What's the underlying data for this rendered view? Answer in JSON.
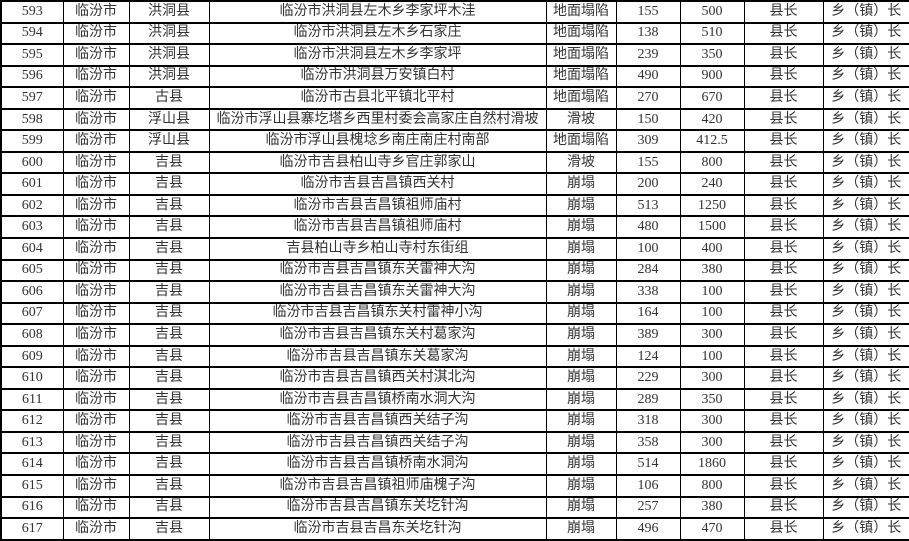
{
  "colors": {
    "background": "#ffffff",
    "border": "#000000",
    "text": "#333333"
  },
  "table": {
    "cell_order": [
      "id",
      "city",
      "county",
      "location",
      "type",
      "num1",
      "num2",
      "resp1",
      "resp2"
    ],
    "rows": [
      {
        "id": "593",
        "city": "临汾市",
        "county": "洪洞县",
        "location": "临汾市洪洞县左木乡李家坪木洼",
        "type": "地面塌陷",
        "num1": "155",
        "num2": "500",
        "resp1": "县长",
        "resp2": "乡（镇）长"
      },
      {
        "id": "594",
        "city": "临汾市",
        "county": "洪洞县",
        "location": "临汾市洪洞县左木乡石家庄",
        "type": "地面塌陷",
        "num1": "138",
        "num2": "510",
        "resp1": "县长",
        "resp2": "乡（镇）长"
      },
      {
        "id": "595",
        "city": "临汾市",
        "county": "洪洞县",
        "location": "临汾市洪洞县左木乡李家坪",
        "type": "地面塌陷",
        "num1": "239",
        "num2": "350",
        "resp1": "县长",
        "resp2": "乡（镇）长"
      },
      {
        "id": "596",
        "city": "临汾市",
        "county": "洪洞县",
        "location": "临汾市洪洞县万安镇白村",
        "type": "地面塌陷",
        "num1": "490",
        "num2": "900",
        "resp1": "县长",
        "resp2": "乡（镇）长"
      },
      {
        "id": "597",
        "city": "临汾市",
        "county": "古县",
        "location": "临汾市古县北平镇北平村",
        "type": "地面塌陷",
        "num1": "270",
        "num2": "670",
        "resp1": "县长",
        "resp2": "乡（镇）长"
      },
      {
        "id": "598",
        "city": "临汾市",
        "county": "浮山县",
        "location": "临汾市浮山县寨圪塔乡西里村委会高家庄自然村滑坡",
        "type": "滑坡",
        "num1": "150",
        "num2": "420",
        "resp1": "县长",
        "resp2": "乡（镇）长"
      },
      {
        "id": "599",
        "city": "临汾市",
        "county": "浮山县",
        "location": "临汾市浮山县槐埝乡南庄南庄村南部",
        "type": "地面塌陷",
        "num1": "309",
        "num2": "412.5",
        "resp1": "县长",
        "resp2": "乡（镇）长"
      },
      {
        "id": "600",
        "city": "临汾市",
        "county": "吉县",
        "location": "临汾市吉县柏山寺乡官庄郭家山",
        "type": "滑坡",
        "num1": "155",
        "num2": "800",
        "resp1": "县长",
        "resp2": "乡（镇）长"
      },
      {
        "id": "601",
        "city": "临汾市",
        "county": "吉县",
        "location": "临汾市吉县吉昌镇西关村",
        "type": "崩塌",
        "num1": "200",
        "num2": "240",
        "resp1": "县长",
        "resp2": "乡（镇）长"
      },
      {
        "id": "602",
        "city": "临汾市",
        "county": "吉县",
        "location": "临汾市吉县吉昌镇祖师庙村",
        "type": "崩塌",
        "num1": "513",
        "num2": "1250",
        "resp1": "县长",
        "resp2": "乡（镇）长"
      },
      {
        "id": "603",
        "city": "临汾市",
        "county": "吉县",
        "location": "临汾市吉县吉昌镇祖师庙村",
        "type": "崩塌",
        "num1": "480",
        "num2": "1500",
        "resp1": "县长",
        "resp2": "乡（镇）长"
      },
      {
        "id": "604",
        "city": "临汾市",
        "county": "吉县",
        "location": "吉县柏山寺乡柏山寺村东街组",
        "type": "崩塌",
        "num1": "100",
        "num2": "400",
        "resp1": "县长",
        "resp2": "乡（镇）长"
      },
      {
        "id": "605",
        "city": "临汾市",
        "county": "吉县",
        "location": "临汾市吉县吉昌镇东关雷神大沟",
        "type": "崩塌",
        "num1": "284",
        "num2": "380",
        "resp1": "县长",
        "resp2": "乡（镇）长"
      },
      {
        "id": "606",
        "city": "临汾市",
        "county": "吉县",
        "location": "临汾市吉县吉昌镇东关雷神大沟",
        "type": "崩塌",
        "num1": "338",
        "num2": "100",
        "resp1": "县长",
        "resp2": "乡（镇）长"
      },
      {
        "id": "607",
        "city": "临汾市",
        "county": "吉县",
        "location": "临汾市吉县吉昌镇东关村雷神小沟",
        "type": "崩塌",
        "num1": "164",
        "num2": "100",
        "resp1": "县长",
        "resp2": "乡（镇）长"
      },
      {
        "id": "608",
        "city": "临汾市",
        "county": "吉县",
        "location": "临汾市吉县吉昌镇东关村葛家沟",
        "type": "崩塌",
        "num1": "389",
        "num2": "300",
        "resp1": "县长",
        "resp2": "乡（镇）长"
      },
      {
        "id": "609",
        "city": "临汾市",
        "county": "吉县",
        "location": "临汾市吉县吉昌镇东关葛家沟",
        "type": "崩塌",
        "num1": "124",
        "num2": "100",
        "resp1": "县长",
        "resp2": "乡（镇）长"
      },
      {
        "id": "610",
        "city": "临汾市",
        "county": "吉县",
        "location": "临汾市吉县吉昌镇西关村淇北沟",
        "type": "崩塌",
        "num1": "229",
        "num2": "300",
        "resp1": "县长",
        "resp2": "乡（镇）长"
      },
      {
        "id": "611",
        "city": "临汾市",
        "county": "吉县",
        "location": "临汾市吉县吉昌镇桥南水洞大沟",
        "type": "崩塌",
        "num1": "289",
        "num2": "350",
        "resp1": "县长",
        "resp2": "乡（镇）长"
      },
      {
        "id": "612",
        "city": "临汾市",
        "county": "吉县",
        "location": "临汾市吉县吉昌镇西关结子沟",
        "type": "崩塌",
        "num1": "318",
        "num2": "300",
        "resp1": "县长",
        "resp2": "乡（镇）长"
      },
      {
        "id": "613",
        "city": "临汾市",
        "county": "吉县",
        "location": "临汾市吉县吉昌镇西关结子沟",
        "type": "崩塌",
        "num1": "358",
        "num2": "300",
        "resp1": "县长",
        "resp2": "乡（镇）长"
      },
      {
        "id": "614",
        "city": "临汾市",
        "county": "吉县",
        "location": "临汾市吉县吉昌镇桥南水洞沟",
        "type": "崩塌",
        "num1": "514",
        "num2": "1860",
        "resp1": "县长",
        "resp2": "乡（镇）长"
      },
      {
        "id": "615",
        "city": "临汾市",
        "county": "吉县",
        "location": "临汾市吉县吉昌镇祖师庙槐子沟",
        "type": "崩塌",
        "num1": "106",
        "num2": "800",
        "resp1": "县长",
        "resp2": "乡（镇）长"
      },
      {
        "id": "616",
        "city": "临汾市",
        "county": "吉县",
        "location": "临汾市吉县吉昌镇东关圪针沟",
        "type": "崩塌",
        "num1": "257",
        "num2": "380",
        "resp1": "县长",
        "resp2": "乡（镇）长"
      },
      {
        "id": "617",
        "city": "临汾市",
        "county": "吉县",
        "location": "临汾市吉县吉昌东关圪针沟",
        "type": "崩塌",
        "num1": "496",
        "num2": "470",
        "resp1": "县长",
        "resp2": "乡（镇）长"
      }
    ]
  }
}
